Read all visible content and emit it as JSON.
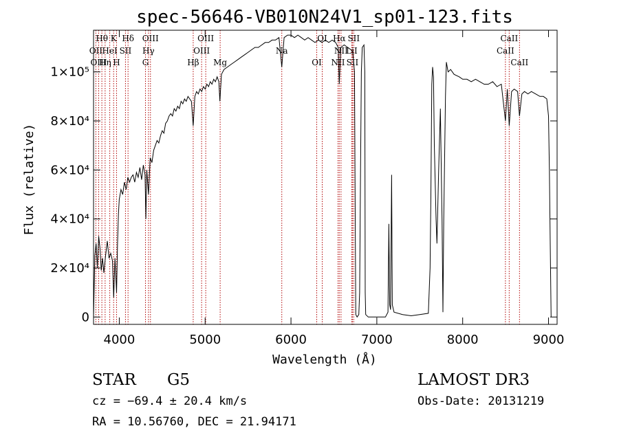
{
  "chart_data": {
    "type": "line",
    "title": "spec-56646-VB010N24V1_sp01-123.fits",
    "xlabel": "Wavelength (Å)",
    "ylabel": "Flux (relative)",
    "xlim": [
      3700,
      9100
    ],
    "ylim": [
      -3000,
      117000
    ],
    "xticks": [
      {
        "value": 4000,
        "label": "4000"
      },
      {
        "value": 5000,
        "label": "5000"
      },
      {
        "value": 6000,
        "label": "6000"
      },
      {
        "value": 7000,
        "label": "7000"
      },
      {
        "value": 8000,
        "label": "8000"
      },
      {
        "value": 9000,
        "label": "9000"
      }
    ],
    "yticks": [
      {
        "value": 0,
        "label": "0"
      },
      {
        "value": 20000,
        "label": "2×10⁴"
      },
      {
        "value": 40000,
        "label": "4×10⁴"
      },
      {
        "value": 60000,
        "label": "6×10⁴"
      },
      {
        "value": 80000,
        "label": "8×10⁴"
      },
      {
        "value": 100000,
        "label": "1×10⁵"
      }
    ],
    "grid": false,
    "line_color": "#000000",
    "marker_color": "#b00000",
    "spectrum": [
      [
        3700,
        0
      ],
      [
        3715,
        25000
      ],
      [
        3730,
        30000
      ],
      [
        3745,
        20000
      ],
      [
        3760,
        33000
      ],
      [
        3775,
        28000
      ],
      [
        3790,
        19000
      ],
      [
        3805,
        24000
      ],
      [
        3820,
        18000
      ],
      [
        3840,
        25000
      ],
      [
        3860,
        31000
      ],
      [
        3880,
        24000
      ],
      [
        3900,
        26000
      ],
      [
        3920,
        23000
      ],
      [
        3935,
        8000
      ],
      [
        3950,
        24000
      ],
      [
        3968,
        10000
      ],
      [
        3980,
        30000
      ],
      [
        3990,
        42000
      ],
      [
        4000,
        48000
      ],
      [
        4020,
        52000
      ],
      [
        4040,
        50000
      ],
      [
        4060,
        55000
      ],
      [
        4080,
        52000
      ],
      [
        4100,
        57000
      ],
      [
        4120,
        55000
      ],
      [
        4140,
        57000
      ],
      [
        4160,
        58000
      ],
      [
        4180,
        55000
      ],
      [
        4200,
        59000
      ],
      [
        4220,
        57000
      ],
      [
        4240,
        61000
      ],
      [
        4260,
        56000
      ],
      [
        4280,
        62000
      ],
      [
        4300,
        58000
      ],
      [
        4310,
        40000
      ],
      [
        4320,
        60000
      ],
      [
        4340,
        50000
      ],
      [
        4360,
        65000
      ],
      [
        4380,
        63000
      ],
      [
        4400,
        68000
      ],
      [
        4420,
        70000
      ],
      [
        4440,
        72000
      ],
      [
        4460,
        71000
      ],
      [
        4480,
        74000
      ],
      [
        4500,
        76000
      ],
      [
        4520,
        75000
      ],
      [
        4540,
        79000
      ],
      [
        4560,
        80000
      ],
      [
        4580,
        82000
      ],
      [
        4600,
        83000
      ],
      [
        4620,
        82000
      ],
      [
        4640,
        85000
      ],
      [
        4660,
        84000
      ],
      [
        4680,
        86000
      ],
      [
        4700,
        85000
      ],
      [
        4720,
        88000
      ],
      [
        4740,
        87000
      ],
      [
        4760,
        89000
      ],
      [
        4780,
        88000
      ],
      [
        4800,
        90000
      ],
      [
        4820,
        89000
      ],
      [
        4840,
        88000
      ],
      [
        4861,
        78000
      ],
      [
        4880,
        90000
      ],
      [
        4900,
        92000
      ],
      [
        4920,
        91000
      ],
      [
        4940,
        93000
      ],
      [
        4960,
        92000
      ],
      [
        4980,
        94000
      ],
      [
        5000,
        93000
      ],
      [
        5020,
        95000
      ],
      [
        5040,
        94000
      ],
      [
        5060,
        96000
      ],
      [
        5080,
        95000
      ],
      [
        5100,
        97000
      ],
      [
        5120,
        96000
      ],
      [
        5140,
        98000
      ],
      [
        5160,
        96000
      ],
      [
        5172,
        88000
      ],
      [
        5190,
        99000
      ],
      [
        5220,
        101000
      ],
      [
        5260,
        102000
      ],
      [
        5300,
        103000
      ],
      [
        5340,
        104000
      ],
      [
        5380,
        105000
      ],
      [
        5420,
        106000
      ],
      [
        5460,
        107000
      ],
      [
        5500,
        108000
      ],
      [
        5540,
        109000
      ],
      [
        5580,
        110000
      ],
      [
        5620,
        110000
      ],
      [
        5660,
        111000
      ],
      [
        5700,
        112000
      ],
      [
        5740,
        112000
      ],
      [
        5780,
        113000
      ],
      [
        5820,
        113000
      ],
      [
        5860,
        114000
      ],
      [
        5893,
        102000
      ],
      [
        5920,
        114000
      ],
      [
        5960,
        115000
      ],
      [
        6000,
        115000
      ],
      [
        6040,
        114000
      ],
      [
        6080,
        115000
      ],
      [
        6120,
        114000
      ],
      [
        6160,
        113000
      ],
      [
        6200,
        114000
      ],
      [
        6240,
        113000
      ],
      [
        6280,
        112000
      ],
      [
        6320,
        113000
      ],
      [
        6360,
        112000
      ],
      [
        6400,
        113000
      ],
      [
        6440,
        112000
      ],
      [
        6480,
        113000
      ],
      [
        6520,
        112000
      ],
      [
        6550,
        110000
      ],
      [
        6563,
        95000
      ],
      [
        6580,
        110000
      ],
      [
        6620,
        111000
      ],
      [
        6660,
        110000
      ],
      [
        6700,
        109000
      ],
      [
        6720,
        108000
      ],
      [
        6740,
        100000
      ],
      [
        6750,
        30000
      ],
      [
        6755,
        1000
      ],
      [
        6770,
        0
      ],
      [
        6790,
        1000
      ],
      [
        6800,
        10000
      ],
      [
        6810,
        60000
      ],
      [
        6820,
        100000
      ],
      [
        6830,
        110000
      ],
      [
        6850,
        111000
      ],
      [
        6860,
        100000
      ],
      [
        6865,
        10000
      ],
      [
        6870,
        1000
      ],
      [
        6900,
        0
      ],
      [
        7000,
        0
      ],
      [
        7100,
        0
      ],
      [
        7130,
        2000
      ],
      [
        7140,
        38000
      ],
      [
        7150,
        5000
      ],
      [
        7160,
        3000
      ],
      [
        7172,
        58000
      ],
      [
        7180,
        5000
      ],
      [
        7200,
        2000
      ],
      [
        7300,
        1000
      ],
      [
        7400,
        500
      ],
      [
        7500,
        1000
      ],
      [
        7600,
        1500
      ],
      [
        7620,
        20000
      ],
      [
        7630,
        50000
      ],
      [
        7640,
        95000
      ],
      [
        7650,
        102000
      ],
      [
        7660,
        98000
      ],
      [
        7670,
        70000
      ],
      [
        7690,
        40000
      ],
      [
        7700,
        30000
      ],
      [
        7720,
        60000
      ],
      [
        7740,
        85000
      ],
      [
        7760,
        40000
      ],
      [
        7770,
        2000
      ],
      [
        7780,
        40000
      ],
      [
        7800,
        90000
      ],
      [
        7810,
        104000
      ],
      [
        7830,
        100000
      ],
      [
        7860,
        101000
      ],
      [
        7900,
        99000
      ],
      [
        7960,
        98000
      ],
      [
        8000,
        97000
      ],
      [
        8050,
        97000
      ],
      [
        8100,
        96000
      ],
      [
        8150,
        97000
      ],
      [
        8200,
        96000
      ],
      [
        8250,
        95000
      ],
      [
        8300,
        95000
      ],
      [
        8350,
        96000
      ],
      [
        8400,
        94000
      ],
      [
        8450,
        95000
      ],
      [
        8498,
        80000
      ],
      [
        8520,
        93000
      ],
      [
        8542,
        78000
      ],
      [
        8570,
        92000
      ],
      [
        8600,
        93000
      ],
      [
        8640,
        92000
      ],
      [
        8662,
        82000
      ],
      [
        8690,
        91000
      ],
      [
        8720,
        92000
      ],
      [
        8760,
        91000
      ],
      [
        8800,
        92000
      ],
      [
        8850,
        91000
      ],
      [
        8900,
        90000
      ],
      [
        8940,
        90000
      ],
      [
        8980,
        89000
      ],
      [
        9000,
        82000
      ],
      [
        9010,
        60000
      ],
      [
        9020,
        30000
      ],
      [
        9030,
        0
      ]
    ],
    "lines": [
      {
        "name": "Hθ",
        "wl": 3797,
        "row": 0
      },
      {
        "name": "K",
        "wl": 3934,
        "row": 0
      },
      {
        "name": "Hδ",
        "wl": 4102,
        "row": 0
      },
      {
        "name": "OIII",
        "wl": 4363,
        "row": 0
      },
      {
        "name": "OIII",
        "wl": 5007,
        "row": 0
      },
      {
        "name": "OI",
        "wl": 6364,
        "row": 0
      },
      {
        "name": "Hα",
        "wl": 6563,
        "row": 0
      },
      {
        "name": "SII",
        "wl": 6731,
        "row": 0
      },
      {
        "name": "CaII",
        "wl": 8542,
        "row": 0
      },
      {
        "name": "OII",
        "wl": 3727,
        "row": 1
      },
      {
        "name": "HeI",
        "wl": 3889,
        "row": 1
      },
      {
        "name": "SII",
        "wl": 4072,
        "row": 1
      },
      {
        "name": "Hγ",
        "wl": 4340,
        "row": 1
      },
      {
        "name": "OIII",
        "wl": 4959,
        "row": 1
      },
      {
        "name": "Na",
        "wl": 5893,
        "row": 1
      },
      {
        "name": "NII",
        "wl": 6583,
        "row": 1
      },
      {
        "name": "LiI",
        "wl": 6708,
        "row": 1
      },
      {
        "name": "CaII",
        "wl": 8498,
        "row": 1
      },
      {
        "name": "OIII",
        "wl": 3760,
        "row": 2
      },
      {
        "name": "Hη",
        "wl": 3835,
        "row": 2
      },
      {
        "name": "H",
        "wl": 3968,
        "row": 2
      },
      {
        "name": "G",
        "wl": 4305,
        "row": 2
      },
      {
        "name": "Hβ",
        "wl": 4861,
        "row": 2
      },
      {
        "name": "Mg",
        "wl": 5175,
        "row": 2
      },
      {
        "name": "OI",
        "wl": 6300,
        "row": 2
      },
      {
        "name": "NII",
        "wl": 6548,
        "row": 2
      },
      {
        "name": "SII",
        "wl": 6716,
        "row": 2
      },
      {
        "name": "CaII",
        "wl": 8662,
        "row": 2
      }
    ]
  },
  "info": {
    "class": "STAR",
    "subclass": "G5",
    "survey": "LAMOST DR3",
    "cz": "cz = −69.4 ± 20.4 km/s",
    "obs_date": "Obs-Date: 20131219",
    "radec": "RA =  10.56760, DEC =  21.94171"
  }
}
